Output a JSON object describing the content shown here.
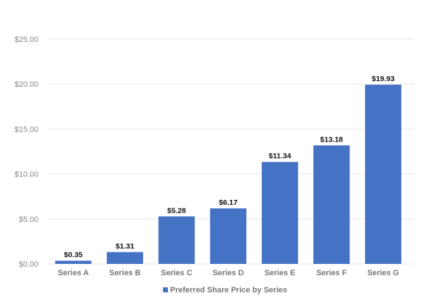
{
  "chart_data": {
    "type": "bar",
    "categories": [
      "Series A",
      "Series B",
      "Series C",
      "Series D",
      "Series E",
      "Series F",
      "Series G"
    ],
    "series": [
      {
        "name": "Preferred Share Price by Series",
        "values": [
          0.35,
          1.31,
          5.28,
          6.17,
          11.34,
          13.18,
          19.93
        ],
        "data_labels": [
          "$0.35",
          "$1.31",
          "$5.28",
          "$6.17",
          "$11.34",
          "$13.18",
          "$19.93"
        ],
        "color": "#4472c4"
      }
    ],
    "ylim": [
      0,
      25
    ],
    "yticks": [
      0,
      5,
      10,
      15,
      20,
      25
    ],
    "ytick_labels": [
      "$0.00",
      "$5.00",
      "$10.00",
      "$15.00",
      "$20.00",
      "$25.00"
    ],
    "grid": true,
    "gridline_color": "#e6e6e6",
    "legend_position": "bottom-center"
  }
}
